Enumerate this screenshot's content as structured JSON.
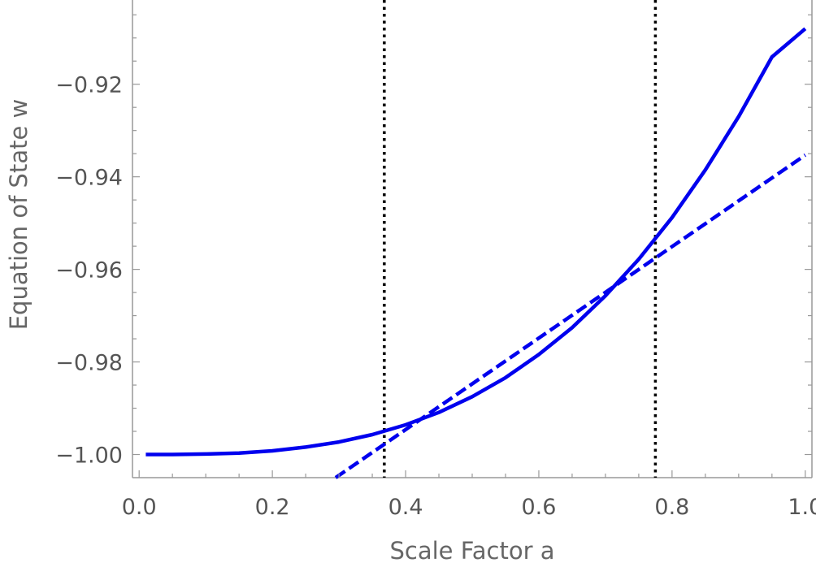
{
  "chart_data": {
    "type": "line",
    "title": "",
    "xlabel": "Scale Factor  a",
    "ylabel": "Equation of State  w",
    "xlim": [
      -0.01,
      1.01
    ],
    "ylim": [
      -1.005,
      -0.9018
    ],
    "grid": false,
    "x_ticks": [
      0.0,
      0.2,
      0.4,
      0.6,
      0.8,
      1.0
    ],
    "x_tick_labels": [
      "0.0",
      "0.2",
      "0.4",
      "0.6",
      "0.8",
      "1.0"
    ],
    "y_ticks": [
      -1.0,
      -0.98,
      -0.96,
      -0.94,
      -0.92
    ],
    "y_tick_labels": [
      "−1.00",
      "−0.98",
      "−0.96",
      "−0.94",
      "−0.92"
    ],
    "vertical_lines": [
      {
        "x": 0.368,
        "style": "dotted",
        "color": "#000000"
      },
      {
        "x": 0.775,
        "style": "dotted",
        "color": "#000000"
      }
    ],
    "series": [
      {
        "style": "solid",
        "color": "#0000ee",
        "x": [
          0.01,
          0.05,
          0.1,
          0.15,
          0.2,
          0.25,
          0.3,
          0.35,
          0.4,
          0.45,
          0.5,
          0.55,
          0.6,
          0.65,
          0.7,
          0.75,
          0.8,
          0.85,
          0.9,
          0.95,
          1.0
        ],
        "y": [
          -1.0,
          -1.0,
          -0.9999,
          -0.9997,
          -0.9992,
          -0.9984,
          -0.9973,
          -0.9957,
          -0.9936,
          -0.9909,
          -0.9875,
          -0.9834,
          -0.9784,
          -0.9726,
          -0.9657,
          -0.9578,
          -0.9488,
          -0.9385,
          -0.927,
          -0.9141,
          -0.908
        ]
      },
      {
        "style": "dashed",
        "color": "#0000ee",
        "x": [
          0.295,
          1.0
        ],
        "y": [
          -1.005,
          -0.9353
        ]
      }
    ]
  }
}
